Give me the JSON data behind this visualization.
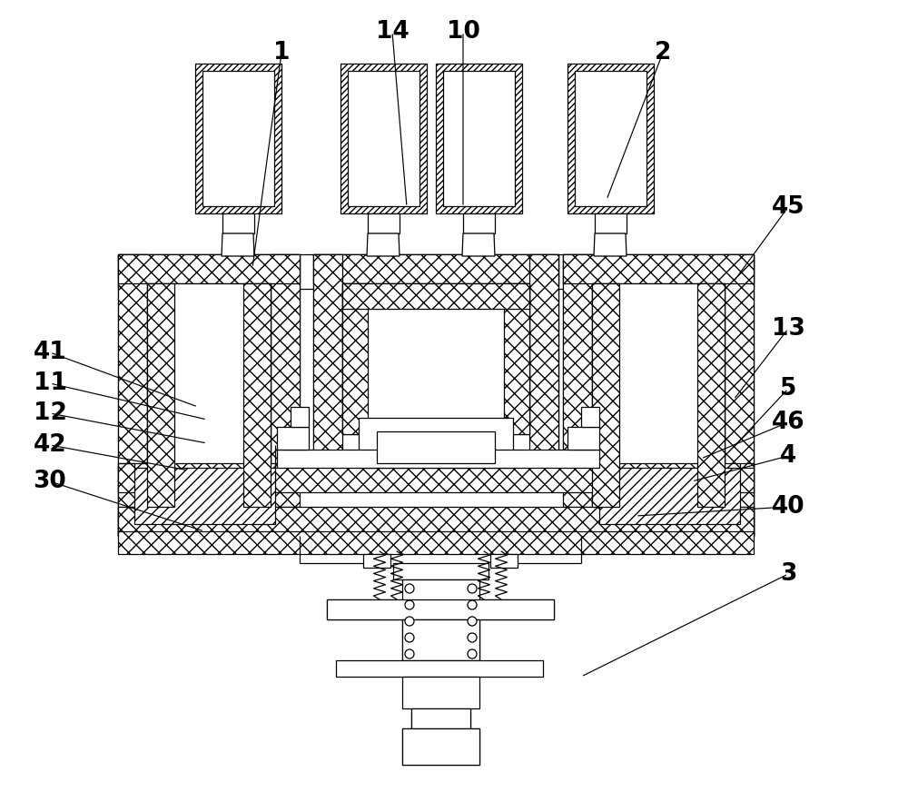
{
  "background_color": "#ffffff",
  "line_color": "#000000",
  "figsize": [
    10.0,
    8.72
  ],
  "labels_info": [
    [
      "1",
      310,
      58,
      278,
      295
    ],
    [
      "14",
      432,
      35,
      448,
      228
    ],
    [
      "10",
      510,
      35,
      510,
      228
    ],
    [
      "2",
      730,
      58,
      668,
      220
    ],
    [
      "45",
      868,
      228,
      808,
      310
    ],
    [
      "13",
      868,
      362,
      808,
      440
    ],
    [
      "5",
      868,
      428,
      808,
      492
    ],
    [
      "46",
      868,
      465,
      772,
      505
    ],
    [
      "4",
      868,
      502,
      762,
      530
    ],
    [
      "40",
      868,
      558,
      700,
      568
    ],
    [
      "3",
      868,
      632,
      640,
      745
    ],
    [
      "41",
      55,
      388,
      218,
      448
    ],
    [
      "11",
      55,
      422,
      228,
      462
    ],
    [
      "12",
      55,
      455,
      228,
      488
    ],
    [
      "42",
      55,
      490,
      208,
      518
    ],
    [
      "30",
      55,
      530,
      225,
      585
    ]
  ]
}
